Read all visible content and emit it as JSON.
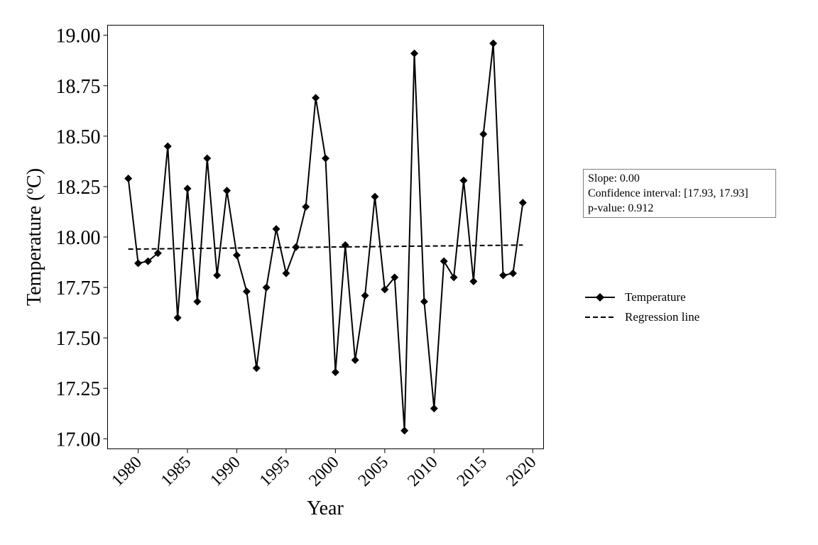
{
  "chart_data": {
    "type": "line",
    "xlabel": "Year",
    "ylabel": "Temperature (ºC)",
    "xlim": [
      1976.9,
      2021.1
    ],
    "ylim": [
      16.95,
      19.05
    ],
    "xticks": [
      1980,
      1985,
      1990,
      1995,
      2000,
      2005,
      2010,
      2015,
      2020
    ],
    "yticks": [
      "17.00",
      "17.25",
      "17.50",
      "17.75",
      "18.00",
      "18.25",
      "18.50",
      "18.75",
      "19.00"
    ],
    "grid": false,
    "legend_position": "right",
    "series": [
      {
        "name": "Temperature",
        "style": "solid-line-diamond-markers",
        "color": "#000000",
        "x": [
          1979,
          1980,
          1981,
          1982,
          1983,
          1984,
          1985,
          1986,
          1987,
          1988,
          1989,
          1990,
          1991,
          1992,
          1993,
          1994,
          1995,
          1996,
          1997,
          1998,
          1999,
          2000,
          2001,
          2002,
          2003,
          2004,
          2005,
          2006,
          2007,
          2008,
          2009,
          2010,
          2011,
          2012,
          2013,
          2014,
          2015,
          2016,
          2017,
          2018,
          2019
        ],
        "y": [
          18.29,
          17.87,
          17.88,
          17.92,
          18.45,
          17.6,
          18.24,
          17.68,
          18.39,
          17.81,
          18.23,
          17.91,
          17.73,
          17.35,
          17.75,
          18.04,
          17.82,
          17.95,
          18.15,
          18.69,
          18.39,
          17.33,
          17.96,
          17.39,
          17.71,
          18.2,
          17.74,
          17.8,
          17.04,
          18.91,
          17.68,
          17.15,
          17.88,
          17.8,
          18.28,
          17.78,
          18.51,
          18.96,
          17.81,
          17.82,
          18.17
        ]
      },
      {
        "name": "Regression line",
        "style": "dashed",
        "color": "#000000",
        "x": [
          1979,
          2019
        ],
        "y": [
          17.94,
          17.96
        ]
      }
    ]
  },
  "stats_box": {
    "slope": "Slope: 0.00",
    "ci": "Confidence interval: [17.93, 17.93]",
    "pvalue": "p-value: 0.912"
  },
  "legend": {
    "temperature": "Temperature",
    "regression": "Regression line"
  }
}
